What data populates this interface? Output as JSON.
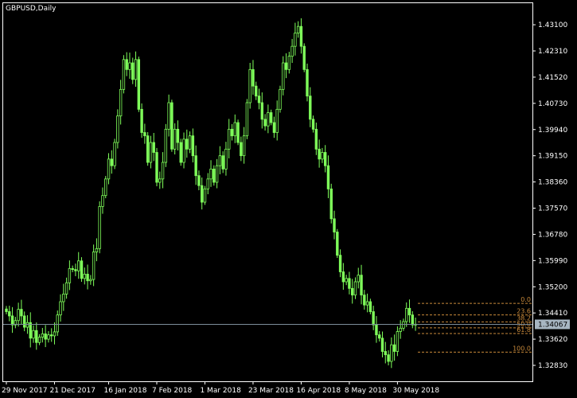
{
  "window": {
    "title": "GBPUSD,Daily"
  },
  "colors": {
    "background": "#000000",
    "axis": "#ffffff",
    "candle": "#7fff5a",
    "fibonacci": "#c8893a",
    "current_price_line": "#7d8e9a",
    "current_price_box": "#a7b6c2"
  },
  "chart_data": {
    "type": "candlestick",
    "symbol": "GBPUSD",
    "timeframe": "Daily",
    "y_ticks": [
      "1.43100",
      "1.42310",
      "1.41520",
      "1.40730",
      "1.39940",
      "1.39150",
      "1.38360",
      "1.37570",
      "1.36780",
      "1.35990",
      "1.35200",
      "1.34410",
      "1.33620",
      "1.32830"
    ],
    "y_tick_values": [
      1.431,
      1.4231,
      1.4152,
      1.4073,
      1.3994,
      1.3915,
      1.3836,
      1.3757,
      1.3678,
      1.3599,
      1.352,
      1.3441,
      1.3362,
      1.3283
    ],
    "x_ticks": [
      "29 Nov 2017",
      "21 Dec 2017",
      "16 Jan 2018",
      "7 Feb 2018",
      "1 Mar 2018",
      "23 Mar 2018",
      "16 Apr 2018",
      "8 May 2018",
      "30 May 2018"
    ],
    "x_tick_index": [
      0,
      16,
      34,
      50,
      66,
      82,
      98,
      114,
      130
    ],
    "ylim": [
      1.3235,
      1.4375
    ],
    "current_price": "1.34067",
    "current_price_value": 1.34067,
    "closes": [
      1.3445,
      1.3432,
      1.3405,
      1.3418,
      1.3452,
      1.3432,
      1.3398,
      1.3412,
      1.3365,
      1.3388,
      1.3352,
      1.3368,
      1.3378,
      1.3362,
      1.3375,
      1.3372,
      1.3384,
      1.3435,
      1.3475,
      1.3498,
      1.3532,
      1.3575,
      1.3572,
      1.3568,
      1.3598,
      1.3545,
      1.3558,
      1.3538,
      1.3542,
      1.3625,
      1.3635,
      1.3762,
      1.3795,
      1.3845,
      1.3905,
      1.3885,
      1.3955,
      1.4035,
      1.4115,
      1.4205,
      1.4175,
      1.4195,
      1.4145,
      1.4205,
      1.4055,
      1.3985,
      1.3975,
      1.3895,
      1.3955,
      1.3925,
      1.3835,
      1.3845,
      1.3895,
      1.3995,
      1.4075,
      1.3935,
      1.3995,
      1.3955,
      1.3895,
      1.3965,
      1.3935,
      1.3975,
      1.3915,
      1.3855,
      1.3825,
      1.3775,
      1.3815,
      1.3845,
      1.3875,
      1.3835,
      1.3885,
      1.3915,
      1.3875,
      1.3935,
      1.3995,
      1.3975,
      1.4015,
      1.3955,
      1.3915,
      1.3975,
      1.4075,
      1.4175,
      1.4125,
      1.4095,
      1.4075,
      1.4025,
      1.4005,
      1.4045,
      1.4015,
      1.3985,
      1.4055,
      1.4115,
      1.4195,
      1.4175,
      1.4215,
      1.4245,
      1.4285,
      1.4305,
      1.4245,
      1.4175,
      1.4095,
      1.4025,
      1.3995,
      1.3935,
      1.3905,
      1.3925,
      1.3885,
      1.3815,
      1.3725,
      1.3685,
      1.3615,
      1.3565,
      1.3535,
      1.3545,
      1.3515,
      1.3495,
      1.3535,
      1.3555,
      1.3495,
      1.3465,
      1.3475,
      1.3445,
      1.3405,
      1.3375,
      1.3365,
      1.3325,
      1.3315,
      1.3295,
      1.3345,
      1.3325,
      1.3385,
      1.3395,
      1.3415,
      1.3455,
      1.3435,
      1.3405,
      1.3407
    ],
    "fibonacci": {
      "levels": [
        {
          "label": "0.0",
          "price": 1.347
        },
        {
          "label": "23.6",
          "price": 1.3435
        },
        {
          "label": "38.2",
          "price": 1.3414
        },
        {
          "label": "50.0",
          "price": 1.3396
        },
        {
          "label": "61.8",
          "price": 1.3379
        },
        {
          "label": "100.0",
          "price": 1.3323
        }
      ]
    }
  }
}
